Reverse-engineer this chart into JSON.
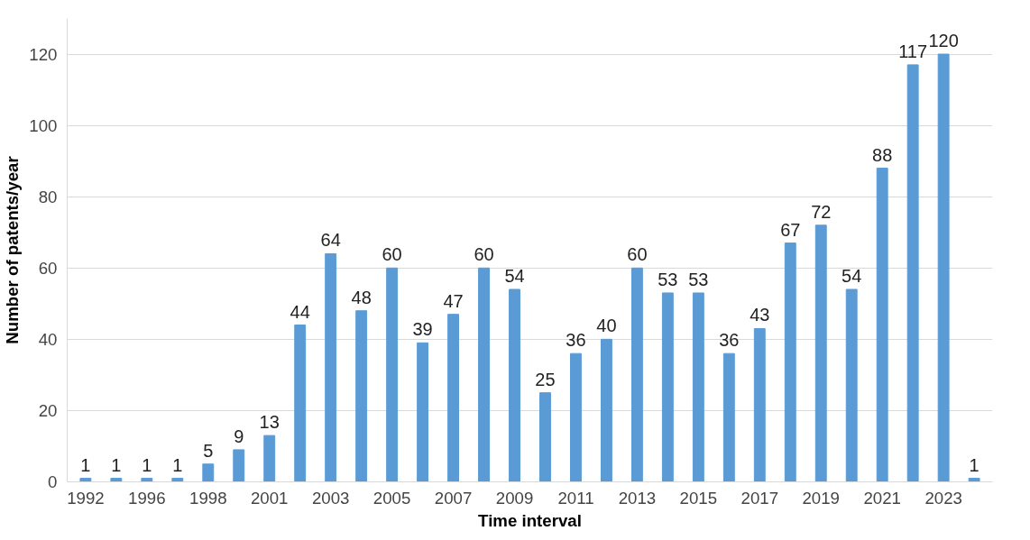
{
  "chart_data": {
    "type": "bar",
    "xlabel": "Time interval",
    "ylabel": "Number of patents/year",
    "categories": [
      "1992",
      null,
      "1996",
      null,
      "1998",
      null,
      "2001",
      null,
      "2003",
      null,
      "2005",
      null,
      "2007",
      null,
      "2009",
      null,
      "2011",
      null,
      "2013",
      null,
      "2015",
      null,
      "2017",
      null,
      "2019",
      null,
      "2021",
      null,
      "2023",
      null
    ],
    "values": [
      1,
      1,
      1,
      1,
      5,
      9,
      13,
      44,
      64,
      48,
      60,
      39,
      47,
      60,
      54,
      25,
      36,
      40,
      60,
      53,
      53,
      36,
      43,
      67,
      72,
      54,
      88,
      117,
      120,
      1
    ],
    "color": "#5b9bd5",
    "ylim": [
      0,
      130
    ],
    "yticks": [
      0,
      20,
      40,
      60,
      80,
      100,
      120
    ],
    "grid": "y",
    "data_labels": true
  }
}
